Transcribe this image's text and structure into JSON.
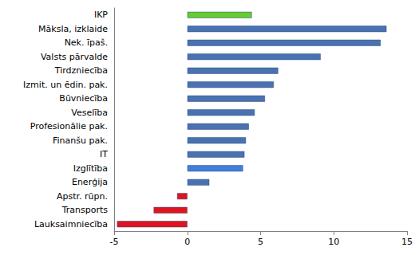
{
  "chart_data": {
    "type": "bar",
    "orientation": "horizontal",
    "categories": [
      "IKP",
      "Māksla, izklaide",
      "Nek. īpaš.",
      "Valsts pārvalde",
      "Tirdzniecība",
      "Izmit. un ēdin. pak.",
      "Būvniecība",
      "Veselība",
      "Profesionālie pak.",
      "Finanšu pak.",
      "IT",
      "Izglītība",
      "Enerģija",
      "Apstr. rūpn.",
      "Transports",
      "Lauksaimniecība"
    ],
    "values": [
      4.4,
      13.6,
      13.2,
      9.1,
      6.2,
      5.9,
      5.3,
      4.6,
      4.2,
      4.0,
      3.9,
      3.8,
      1.5,
      -0.7,
      -2.3,
      -4.8
    ],
    "colors": [
      "#66cc33",
      "#4a72b0",
      "#4a72b0",
      "#4a72b0",
      "#4a72b0",
      "#4a72b0",
      "#4a72b0",
      "#4a72b0",
      "#4a72b0",
      "#4a72b0",
      "#4a72b0",
      "#3f7fe0",
      "#4a72b0",
      "#e0141e",
      "#e0141e",
      "#e0141e"
    ],
    "xlim": [
      -5,
      15
    ],
    "xticks": [
      -5,
      0,
      5,
      10,
      15
    ],
    "grid": false
  }
}
